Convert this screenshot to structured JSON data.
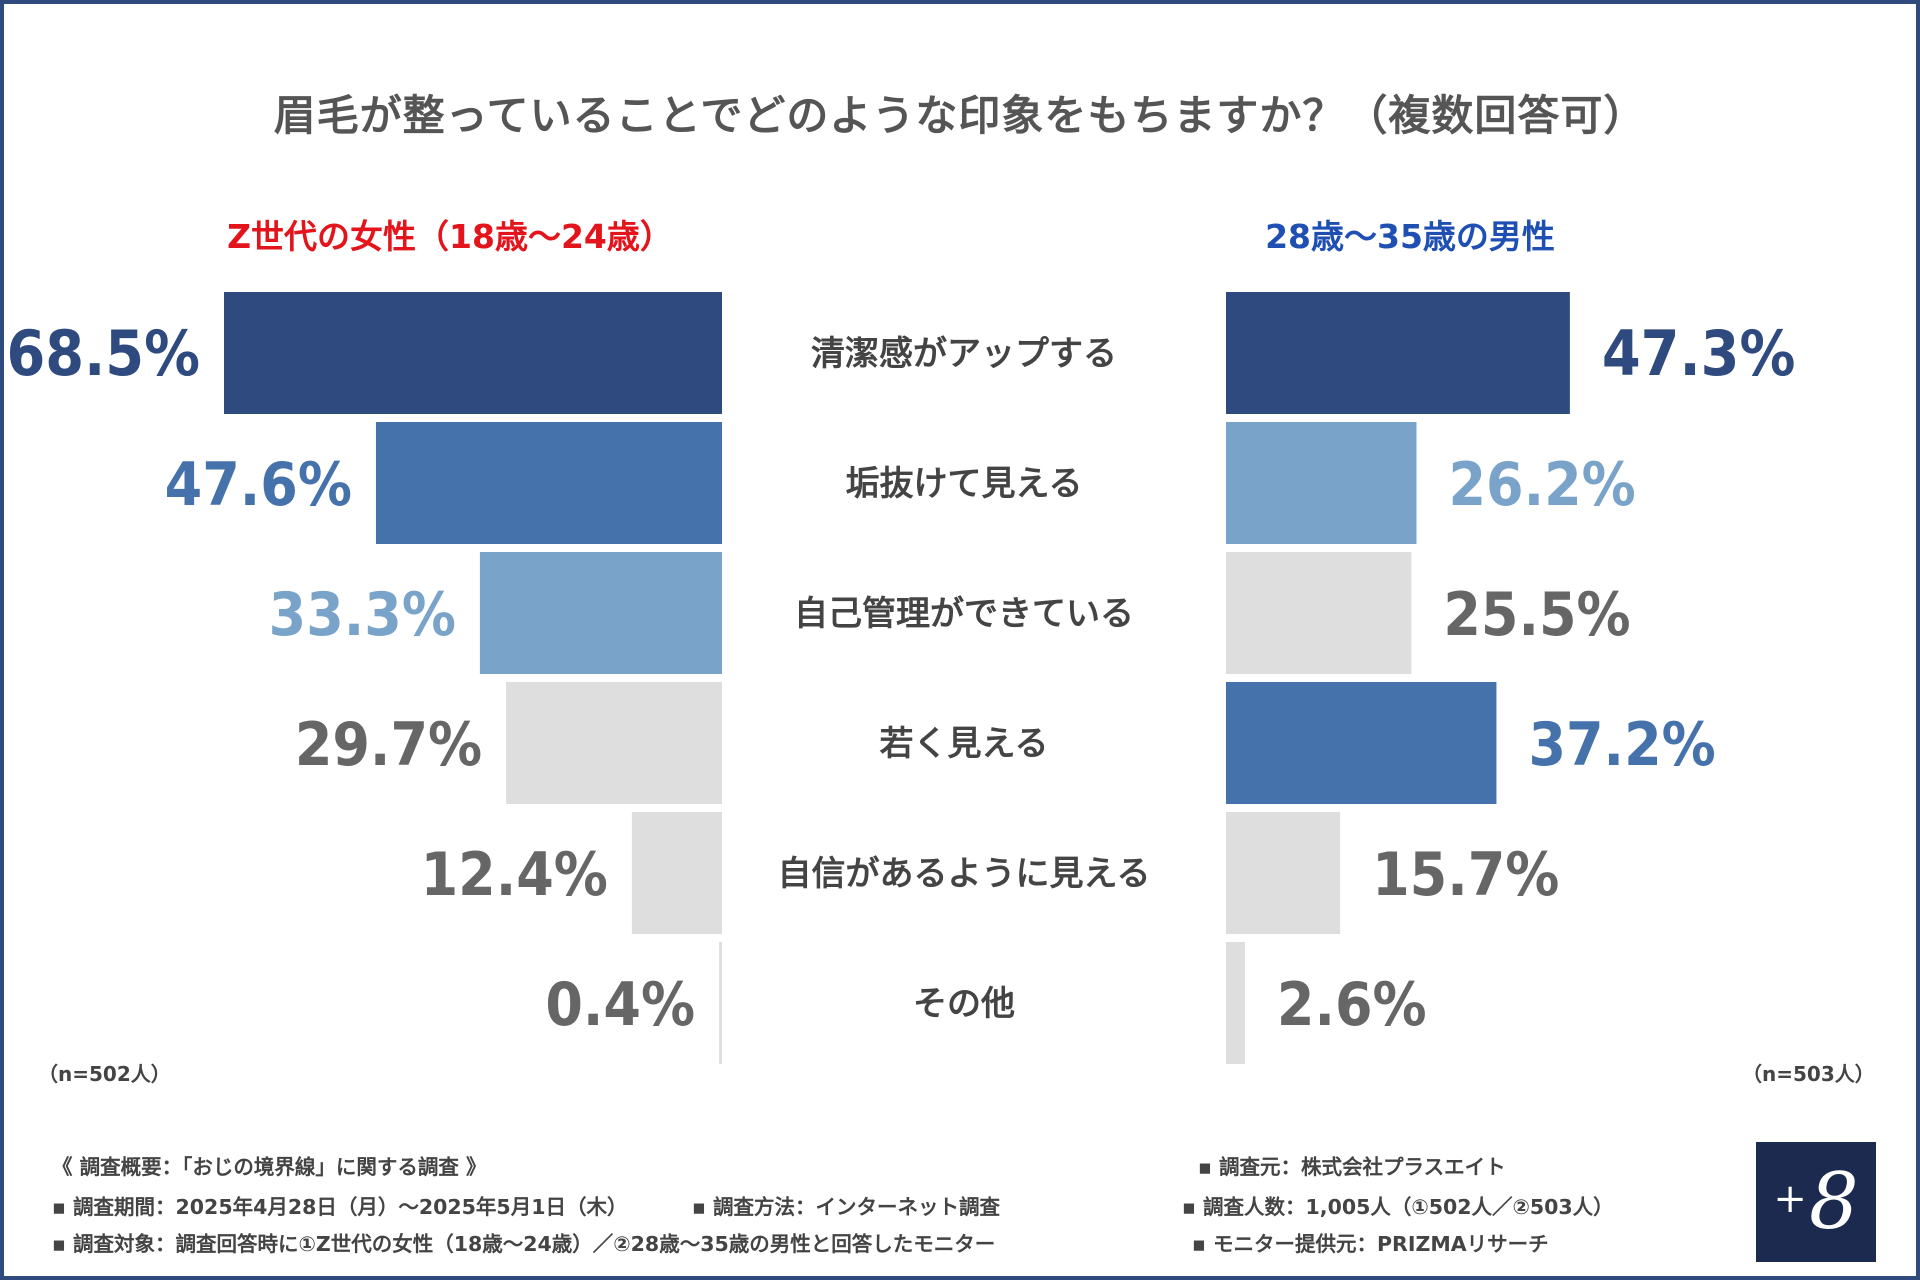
{
  "title": "眉毛が整っていることでどのような印象をもちますか？（複数回答可）",
  "groups": {
    "left": {
      "label": "Z世代の女性（18歳〜24歳）",
      "color": "#e3141b",
      "n": "（n=502人）"
    },
    "right": {
      "label": "28歳〜35歳の男性",
      "color": "#1f4fb3",
      "n": "（n=503人）"
    }
  },
  "colors": {
    "dark": "#2e4a7e",
    "mid": "#4572ab",
    "light": "#79a3c8",
    "gray": "#dedede",
    "gray_text": "#666666",
    "category_text": "#444444"
  },
  "chart_data": {
    "type": "bar",
    "orientation": "horizontal-butterfly",
    "title": "眉毛が整っていることでどのような印象をもちますか？（複数回答可）",
    "unit": "%",
    "categories": [
      "清潔感がアップする",
      "垢抜けて見える",
      "自己管理ができている",
      "若く見える",
      "自信があるように見える",
      "その他"
    ],
    "series": [
      {
        "name": "Z世代の女性（18歳〜24歳）",
        "values": [
          68.5,
          47.6,
          33.3,
          29.7,
          12.4,
          0.4
        ],
        "labels": [
          "68.5%",
          "47.6%",
          "33.3%",
          "29.7%",
          "12.4%",
          "0.4%"
        ],
        "rank_colors": [
          "dark",
          "mid",
          "light",
          "gray",
          "gray",
          "gray"
        ]
      },
      {
        "name": "28歳〜35歳の男性",
        "values": [
          47.3,
          26.2,
          25.5,
          37.2,
          15.7,
          2.6
        ],
        "labels": [
          "47.3%",
          "26.2%",
          "25.5%",
          "37.2%",
          "15.7%",
          "2.6%"
        ],
        "rank_colors": [
          "dark",
          "light",
          "gray",
          "mid",
          "gray",
          "gray"
        ]
      }
    ],
    "xlim": [
      0,
      68.5
    ]
  },
  "footer": {
    "overview": "《 調査概要：「おじの境界線」に関する調査 》",
    "period": "▪ 調査期間：2025年4月28日（月）〜2025年5月1日（木）",
    "method": "▪ 調査方法：インターネット調査",
    "target": "▪ 調査対象：調査回答時に①Z世代の女性（18歳〜24歳）／②28歳〜35歳の男性と回答したモニター",
    "source": "▪ 調査元：株式会社プラスエイト",
    "count": "▪ 調査人数：1,005人（①502人／②503人）",
    "provider": "▪ モニター提供元：PRIZMAリサーチ"
  },
  "logo": {
    "plus": "+",
    "eight": "8"
  }
}
